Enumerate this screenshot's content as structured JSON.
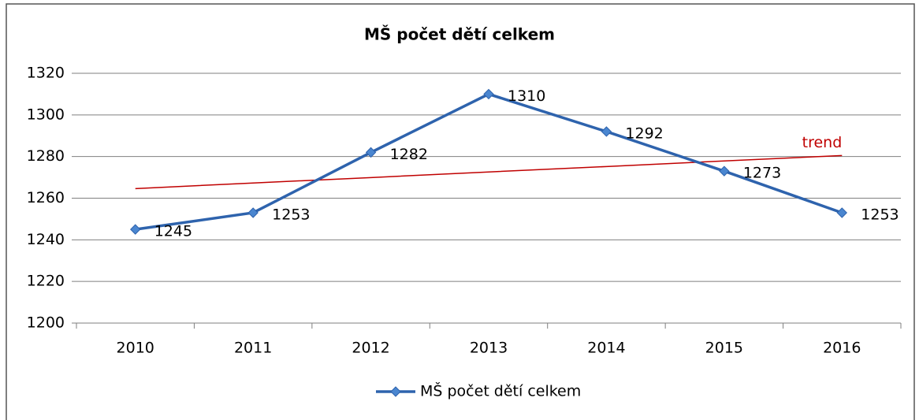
{
  "chart_data": {
    "type": "line",
    "title": "MŠ počet dětí celkem",
    "categories": [
      "2010",
      "2011",
      "2012",
      "2013",
      "2014",
      "2015",
      "2016"
    ],
    "series": [
      {
        "name": "MŠ počet dětí celkem",
        "color": "#2e63ad",
        "values": [
          1245,
          1253,
          1282,
          1310,
          1292,
          1273,
          1253
        ]
      }
    ],
    "trend": {
      "label": "trend",
      "color": "#c00000",
      "values": [
        1264.6,
        1267.3,
        1269.9,
        1272.6,
        1275.2,
        1277.9,
        1280.5
      ]
    },
    "ylim": [
      1200,
      1320
    ],
    "yticks": [
      1200,
      1220,
      1240,
      1260,
      1280,
      1300,
      1320
    ],
    "grid": true,
    "legend": "bottom"
  }
}
